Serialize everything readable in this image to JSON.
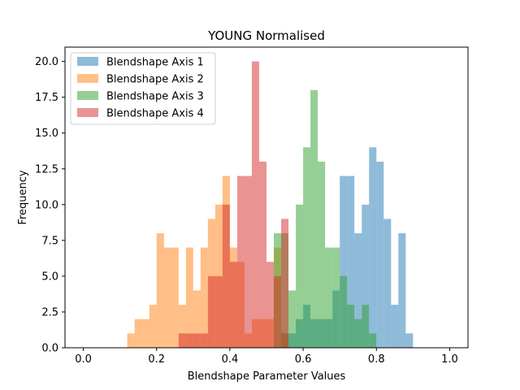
{
  "chart_data": {
    "type": "bar",
    "title": "YOUNG Normalised",
    "xlabel": "Blendshape Parameter Values",
    "ylabel": "Frequency",
    "xlim": [
      -0.05,
      1.05
    ],
    "ylim": [
      0,
      21
    ],
    "xticks": [
      "0.0",
      "0.2",
      "0.4",
      "0.6",
      "0.8",
      "1.0"
    ],
    "yticks": [
      "0.0",
      "2.5",
      "5.0",
      "7.5",
      "10.0",
      "12.5",
      "15.0",
      "17.5",
      "20.0"
    ],
    "bin_width": 0.02,
    "legend_position": "upper-left",
    "bar_opacity": 0.5,
    "series": [
      {
        "name": "Blendshape Axis 1",
        "color": "#1f77b4",
        "bins": [
          {
            "x": 0.54,
            "y": 1
          },
          {
            "x": 0.56,
            "y": 1
          },
          {
            "x": 0.58,
            "y": 2
          },
          {
            "x": 0.6,
            "y": 3
          },
          {
            "x": 0.62,
            "y": 2
          },
          {
            "x": 0.64,
            "y": 2
          },
          {
            "x": 0.66,
            "y": 2
          },
          {
            "x": 0.68,
            "y": 4
          },
          {
            "x": 0.7,
            "y": 12
          },
          {
            "x": 0.72,
            "y": 12
          },
          {
            "x": 0.74,
            "y": 8
          },
          {
            "x": 0.76,
            "y": 10
          },
          {
            "x": 0.78,
            "y": 14
          },
          {
            "x": 0.8,
            "y": 13
          },
          {
            "x": 0.82,
            "y": 9
          },
          {
            "x": 0.84,
            "y": 3
          },
          {
            "x": 0.86,
            "y": 8
          },
          {
            "x": 0.88,
            "y": 1
          }
        ]
      },
      {
        "name": "Blendshape Axis 2",
        "color": "#ff7f0e",
        "bins": [
          {
            "x": 0.12,
            "y": 1
          },
          {
            "x": 0.14,
            "y": 2
          },
          {
            "x": 0.16,
            "y": 2
          },
          {
            "x": 0.18,
            "y": 3
          },
          {
            "x": 0.2,
            "y": 8
          },
          {
            "x": 0.22,
            "y": 7
          },
          {
            "x": 0.24,
            "y": 7
          },
          {
            "x": 0.26,
            "y": 3
          },
          {
            "x": 0.28,
            "y": 7
          },
          {
            "x": 0.3,
            "y": 4
          },
          {
            "x": 0.32,
            "y": 7
          },
          {
            "x": 0.34,
            "y": 9
          },
          {
            "x": 0.36,
            "y": 10
          },
          {
            "x": 0.38,
            "y": 12
          },
          {
            "x": 0.4,
            "y": 7
          },
          {
            "x": 0.42,
            "y": 6
          },
          {
            "x": 0.44,
            "y": 1
          },
          {
            "x": 0.46,
            "y": 2
          },
          {
            "x": 0.48,
            "y": 2
          },
          {
            "x": 0.5,
            "y": 2
          },
          {
            "x": 0.52,
            "y": 7
          },
          {
            "x": 0.54,
            "y": 1
          }
        ]
      },
      {
        "name": "Blendshape Axis 3",
        "color": "#2ca02c",
        "bins": [
          {
            "x": 0.52,
            "y": 8
          },
          {
            "x": 0.54,
            "y": 8
          },
          {
            "x": 0.56,
            "y": 4
          },
          {
            "x": 0.58,
            "y": 10
          },
          {
            "x": 0.6,
            "y": 14
          },
          {
            "x": 0.62,
            "y": 18
          },
          {
            "x": 0.64,
            "y": 13
          },
          {
            "x": 0.66,
            "y": 7
          },
          {
            "x": 0.68,
            "y": 7
          },
          {
            "x": 0.7,
            "y": 5
          },
          {
            "x": 0.72,
            "y": 3
          },
          {
            "x": 0.74,
            "y": 2
          },
          {
            "x": 0.76,
            "y": 3
          },
          {
            "x": 0.78,
            "y": 1
          }
        ]
      },
      {
        "name": "Blendshape Axis 4",
        "color": "#d62728",
        "bins": [
          {
            "x": 0.26,
            "y": 1
          },
          {
            "x": 0.28,
            "y": 1
          },
          {
            "x": 0.3,
            "y": 1
          },
          {
            "x": 0.32,
            "y": 1
          },
          {
            "x": 0.34,
            "y": 5
          },
          {
            "x": 0.36,
            "y": 5
          },
          {
            "x": 0.38,
            "y": 10
          },
          {
            "x": 0.4,
            "y": 6
          },
          {
            "x": 0.42,
            "y": 12
          },
          {
            "x": 0.44,
            "y": 12
          },
          {
            "x": 0.46,
            "y": 20
          },
          {
            "x": 0.48,
            "y": 13
          },
          {
            "x": 0.5,
            "y": 6
          },
          {
            "x": 0.52,
            "y": 5
          },
          {
            "x": 0.54,
            "y": 9
          }
        ]
      }
    ]
  }
}
